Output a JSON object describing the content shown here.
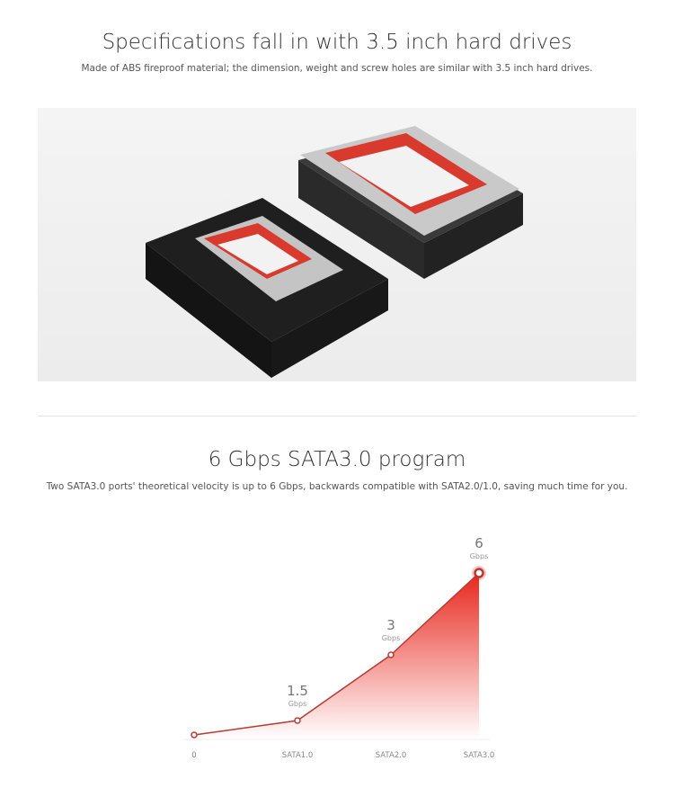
{
  "section1": {
    "title": "Specifications fall in with 3.5 inch hard drives",
    "subtitle": "Made of ABS fireproof material; the dimension, weight and screw holes are similar with 3.5 inch hard drives."
  },
  "section2": {
    "title": "6 Gbps SATA3.0 program",
    "subtitle": "Two SATA3.0 ports' theoretical velocity is up to 6 Gbps, backwards compatible with SATA2.0/1.0, saving much time for you."
  },
  "chart_data": {
    "type": "area",
    "categories": [
      "0",
      "SATA1.0",
      "SATA2.0",
      "SATA3.0"
    ],
    "values": [
      0,
      1.5,
      3,
      6
    ],
    "unit": "Gbps",
    "data_labels": [
      "",
      "1.5",
      "3",
      "6"
    ],
    "color": "#e8261c",
    "grid": false
  }
}
